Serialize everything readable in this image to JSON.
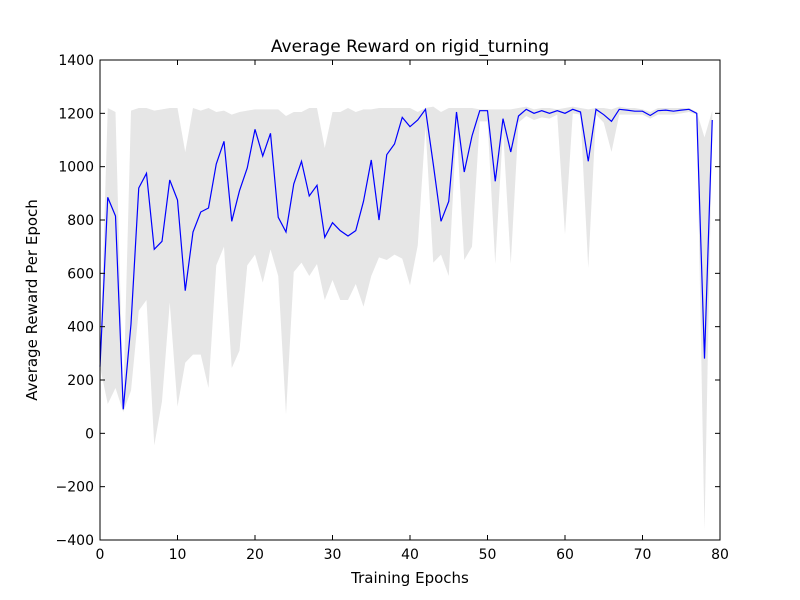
{
  "chart_data": {
    "type": "line",
    "title": "Average Reward on rigid_turning",
    "xlabel": "Training Epochs",
    "ylabel": "Average Reward Per Epoch",
    "xlim": [
      0,
      80
    ],
    "ylim": [
      -400,
      1400
    ],
    "xticks": [
      0,
      10,
      20,
      30,
      40,
      50,
      60,
      70,
      80
    ],
    "yticks": [
      -400,
      -200,
      0,
      200,
      400,
      600,
      800,
      1000,
      1200,
      1400
    ],
    "xtick_labels": [
      "0",
      "10",
      "20",
      "30",
      "40",
      "50",
      "60",
      "70",
      "80"
    ],
    "ytick_labels": [
      "−400",
      "−200",
      "0",
      "200",
      "400",
      "600",
      "800",
      "1000",
      "1200",
      "1400"
    ],
    "grid": false,
    "line_color": "#0000ff",
    "band_color": "#e6e6e6",
    "x": [
      0,
      1,
      2,
      3,
      4,
      5,
      6,
      7,
      8,
      9,
      10,
      11,
      12,
      13,
      14,
      15,
      16,
      17,
      18,
      19,
      20,
      21,
      22,
      23,
      24,
      25,
      26,
      27,
      28,
      29,
      30,
      31,
      32,
      33,
      34,
      35,
      36,
      37,
      38,
      39,
      40,
      41,
      42,
      43,
      44,
      45,
      46,
      47,
      48,
      49,
      50,
      51,
      52,
      53,
      54,
      55,
      56,
      57,
      58,
      59,
      60,
      61,
      62,
      63,
      64,
      65,
      66,
      67,
      68,
      69,
      70,
      71,
      72,
      73,
      74,
      75,
      76,
      77,
      78,
      79
    ],
    "mean": [
      250,
      885,
      815,
      90,
      410,
      920,
      975,
      690,
      720,
      950,
      875,
      535,
      755,
      830,
      845,
      1010,
      1095,
      795,
      910,
      995,
      1140,
      1040,
      1125,
      810,
      755,
      935,
      1020,
      890,
      930,
      735,
      790,
      760,
      740,
      760,
      870,
      1025,
      800,
      1045,
      1085,
      1185,
      1150,
      1175,
      1215,
      1010,
      795,
      870,
      1205,
      980,
      1115,
      1210,
      1210,
      945,
      1180,
      1055,
      1190,
      1215,
      1200,
      1210,
      1200,
      1210,
      1200,
      1215,
      1205,
      1020,
      1215,
      1195,
      1170,
      1215,
      1212,
      1208,
      1208,
      1192,
      1210,
      1212,
      1208,
      1212,
      1215,
      1200,
      280,
      1175
    ],
    "upper": [
      250,
      1220,
      1205,
      120,
      1210,
      1220,
      1220,
      1210,
      1215,
      1220,
      1220,
      1055,
      1220,
      1210,
      1220,
      1205,
      1210,
      1195,
      1205,
      1210,
      1215,
      1215,
      1215,
      1215,
      1190,
      1205,
      1205,
      1220,
      1220,
      1070,
      1205,
      1205,
      1220,
      1205,
      1215,
      1215,
      1220,
      1220,
      1220,
      1220,
      1220,
      1205,
      1220,
      1225,
      1205,
      1220,
      1220,
      1220,
      1220,
      1215,
      1215,
      1215,
      1215,
      1215,
      1220,
      1225,
      1215,
      1220,
      1220,
      1215,
      1220,
      1225,
      1220,
      1215,
      1220,
      1220,
      1215,
      1225,
      1220,
      1220,
      1215,
      1205,
      1220,
      1220,
      1220,
      1220,
      1220,
      1205,
      1110,
      1210
    ],
    "lower": [
      250,
      110,
      170,
      80,
      160,
      460,
      500,
      -45,
      120,
      490,
      100,
      265,
      295,
      295,
      170,
      630,
      700,
      245,
      310,
      630,
      670,
      565,
      690,
      590,
      70,
      605,
      640,
      590,
      635,
      500,
      575,
      500,
      500,
      560,
      475,
      590,
      660,
      650,
      670,
      655,
      555,
      705,
      1150,
      640,
      670,
      590,
      1150,
      650,
      700,
      1170,
      1170,
      635,
      1140,
      635,
      1165,
      1190,
      1175,
      1185,
      1180,
      1195,
      745,
      1200,
      1195,
      620,
      1195,
      1165,
      1055,
      1195,
      1195,
      1195,
      1195,
      1180,
      1195,
      1195,
      1195,
      1200,
      1205,
      1195,
      -365,
      1160
    ]
  }
}
